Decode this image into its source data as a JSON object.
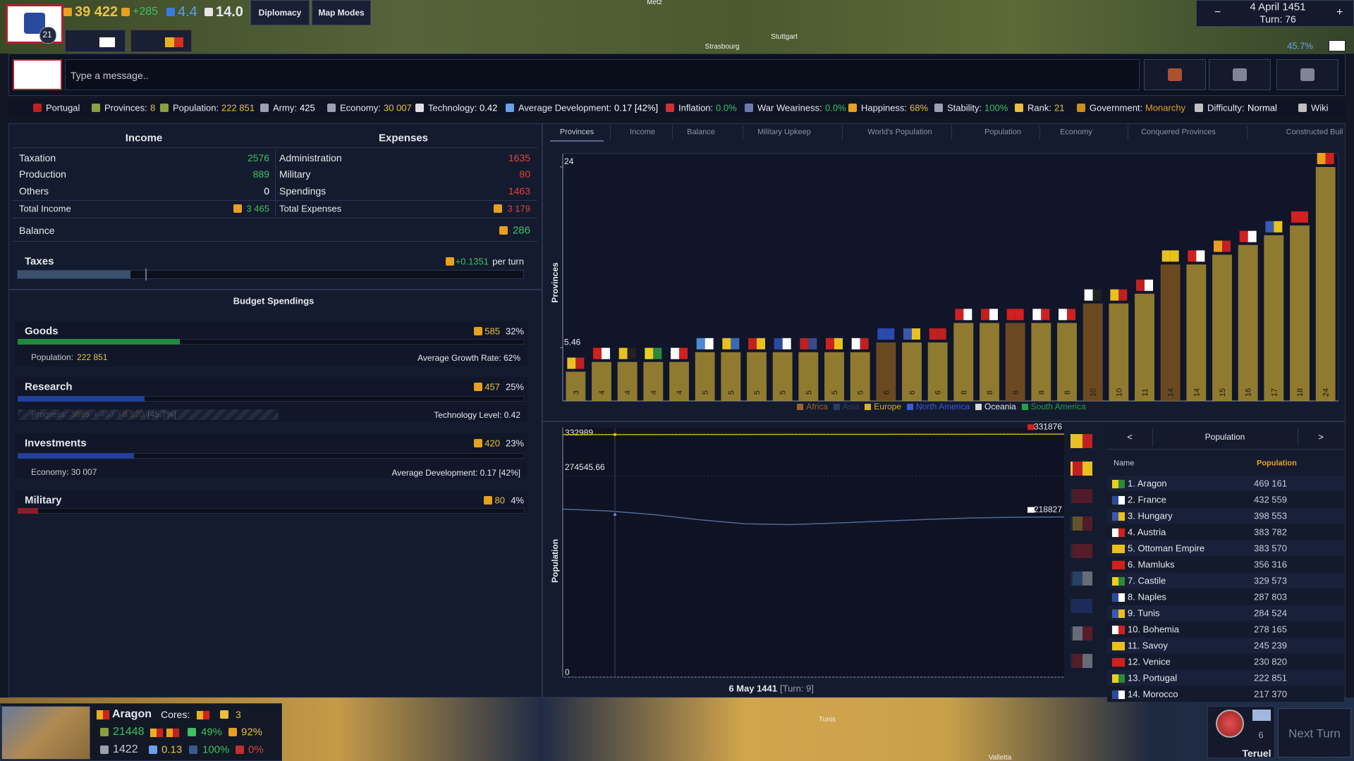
{
  "top_bar": {
    "gold": "39 422",
    "income": "+285",
    "manpower": "4.4",
    "prestige": "14.0",
    "level": "21",
    "buttons": [
      "Diplomacy",
      "Map Modes"
    ],
    "date": "4 April 1451",
    "turn": "Turn: 76",
    "progress": "45.7%"
  },
  "map_labels": [
    "Metz",
    "Strasbourg",
    "Stuttgart",
    "Tunis",
    "Valletta"
  ],
  "chat": {
    "placeholder": "Type a message.."
  },
  "stats_bar": [
    {
      "label": "Portugal"
    },
    {
      "label": "Provinces:",
      "value": "8",
      "color": "#e8c040"
    },
    {
      "label": "Population:",
      "value": "222 851",
      "color": "#e8c040"
    },
    {
      "label": "Army:",
      "value": "425",
      "color": "#ffffff"
    },
    {
      "label": "Economy:",
      "value": "30 007",
      "color": "#e8c040"
    },
    {
      "label": "Technology:",
      "value": "0.42",
      "color": "#ffffff"
    },
    {
      "label": "Average Development:",
      "value": "0.17 [42%]",
      "color": "#ffffff"
    },
    {
      "label": "Inflation:",
      "value": "0.0%",
      "color": "#3cc060"
    },
    {
      "label": "War Weariness:",
      "value": "0.0%",
      "color": "#3cc060"
    },
    {
      "label": "Happiness:",
      "value": "68%",
      "color": "#e8c040"
    },
    {
      "label": "Stability:",
      "value": "100%",
      "color": "#3cc060"
    },
    {
      "label": "Rank:",
      "value": "21",
      "color": "#e8c040"
    },
    {
      "label": "Government:",
      "value": "Monarchy",
      "color": "#e8a020"
    },
    {
      "label": "Difficulty:",
      "value": "Normal",
      "color": "#ffffff"
    },
    {
      "label": "Wiki"
    }
  ],
  "finance": {
    "income_header": "Income",
    "expenses_header": "Expenses",
    "income": [
      {
        "label": "Taxation",
        "value": "2576",
        "color": "#3cc060"
      },
      {
        "label": "Production",
        "value": "889",
        "color": "#3cc060"
      },
      {
        "label": "Others",
        "value": "0",
        "color": "#ffffff"
      }
    ],
    "expenses": [
      {
        "label": "Administration",
        "value": "1635",
        "color": "#e04040"
      },
      {
        "label": "Military",
        "value": "80",
        "color": "#e04040"
      },
      {
        "label": "Spendings",
        "value": "1463",
        "color": "#e04040"
      }
    ],
    "total_income": {
      "label": "Total Income",
      "value": "3 465",
      "color": "#3cc060"
    },
    "total_expenses": {
      "label": "Total Expenses",
      "value": "3 179",
      "color": "#e04040"
    },
    "balance": {
      "label": "Balance",
      "value": "286",
      "color": "#3cc060"
    },
    "taxes": {
      "label": "Taxes",
      "value": "+0.1351",
      "unit": "per turn"
    }
  },
  "budget": {
    "title": "Budget Spendings",
    "items": [
      {
        "name": "Goods",
        "amount": 585,
        "pct": 32,
        "pct_label": "32%",
        "color": "#1f8a3a",
        "detail": {
          "parts": [
            {
              "text": "Population:",
              "color": "#c8c8c8"
            },
            {
              "text": "222 851",
              "color": "#e8c040"
            }
          ],
          "right": "Average Growth Rate: 62%"
        }
      },
      {
        "name": "Research",
        "amount": 457,
        "pct": 25,
        "pct_label": "25%",
        "color": "#23409a",
        "detail": {
          "parts": [
            {
              "text": "Progress:",
              "color": "#c8c8c8"
            },
            {
              "text": "3895",
              "color": "#e8c040"
            },
            {
              "text": "+ 457",
              "color": "#6a9ae8"
            },
            {
              "text": "/ 8 520",
              "color": "#e8a020"
            },
            {
              "text": "[45.7%]",
              "color": "#ffffff"
            }
          ],
          "right": "Technology Level: 0.42"
        }
      },
      {
        "name": "Investments",
        "amount": 420,
        "pct": 23,
        "pct_label": "23%",
        "color": "#23409a",
        "detail": {
          "parts": [
            {
              "text": "Economy: 30 007",
              "color": "#c8c8c8"
            }
          ],
          "right": "Average Development: 0.17 [42%]"
        }
      },
      {
        "name": "Military",
        "amount": 80,
        "pct": 4,
        "pct_label": "4%",
        "color": "#8a1f2a"
      }
    ]
  },
  "tabs": [
    "Provinces",
    "Income",
    "Balance",
    "Military Upkeep",
    "World's Population",
    "Population",
    "Economy",
    "Conquered Provinces",
    "Constructed Buil"
  ],
  "chart_data": [
    {
      "type": "bar",
      "ylabel": "Provinces",
      "values": [
        3,
        4,
        4,
        4,
        4,
        5,
        5,
        5,
        5,
        5,
        5,
        5,
        6,
        6,
        6,
        8,
        8,
        8,
        8,
        8,
        10,
        10,
        11,
        14,
        14,
        15,
        16,
        17,
        18,
        24
      ],
      "colors": [
        "#a68c30",
        "#a68c30",
        "#a68c30",
        "#a68c30",
        "#a68c30",
        "#a68c30",
        "#a68c30",
        "#a68c30",
        "#a68c30",
        "#a68c30",
        "#a68c30",
        "#a68c30",
        "#7a5220",
        "#a68c30",
        "#a68c30",
        "#a68c30",
        "#a68c30",
        "#7a5220",
        "#a68c30",
        "#a68c30",
        "#7a5220",
        "#a68c30",
        "#a68c30",
        "#7a5220",
        "#a68c30",
        "#a68c30",
        "#a68c30",
        "#a68c30",
        "#a68c30",
        "#a68c30"
      ],
      "ylim": [
        0,
        24
      ],
      "yticks": [
        5.46,
        24
      ],
      "legend": [
        {
          "name": "Africa",
          "color": "#9a6428"
        },
        {
          "name": "Asia",
          "color": "#2a3e66"
        },
        {
          "name": "Europe",
          "color": "#d8b428"
        },
        {
          "name": "North America",
          "color": "#3a5ae0"
        },
        {
          "name": "Oceania",
          "color": "#d8d8d8"
        },
        {
          "name": "South America",
          "color": "#22a04a"
        }
      ]
    },
    {
      "type": "line",
      "ylabel": "Population",
      "ylim": [
        0,
        332989
      ],
      "yticks": [
        0,
        274545.66,
        332989
      ],
      "series": [
        {
          "color": "#c8a820",
          "values": [
            331200,
            331300,
            331350,
            331400,
            331450,
            331500,
            331550,
            331600,
            331650,
            331700,
            331800,
            331876
          ]
        },
        {
          "color": "#4a6a9a",
          "values": [
            229500,
            227000,
            222000,
            215000,
            209500,
            208300,
            210500,
            213000,
            215500,
            217500,
            218500,
            218827
          ]
        }
      ],
      "hover_date": "6 May 1441",
      "hover_turn": "[Turn: 9]"
    }
  ],
  "ranking": {
    "prev": "<",
    "title": "Population",
    "next": ">",
    "headers": [
      "Name",
      "Population"
    ],
    "rows": [
      [
        "1. Aragon",
        "469 161"
      ],
      [
        "2. France",
        "432 559"
      ],
      [
        "3. Hungary",
        "398 553"
      ],
      [
        "4. Austria",
        "383 782"
      ],
      [
        "5. Ottoman Empire",
        "383 570"
      ],
      [
        "6. Mamluks",
        "356 316"
      ],
      [
        "7. Castile",
        "329 573"
      ],
      [
        "8. Naples",
        "287 803"
      ],
      [
        "9. Tunis",
        "284 524"
      ],
      [
        "10. Bohemia",
        "278 165"
      ],
      [
        "11. Savoy",
        "245 239"
      ],
      [
        "12. Venice",
        "230 820"
      ],
      [
        "13. Portugal",
        "222 851"
      ],
      [
        "14. Morocco",
        "217 370"
      ]
    ]
  },
  "selected": {
    "name": "Aragon",
    "cores_label": "Cores:",
    "stars": "3",
    "population": "21448",
    "growth": "49%",
    "happiness": "92%",
    "army": "1422",
    "development": "0.13",
    "control": "100%",
    "unrest": "0%",
    "units": "6",
    "province": "Teruel",
    "next_turn": "Next Turn"
  }
}
